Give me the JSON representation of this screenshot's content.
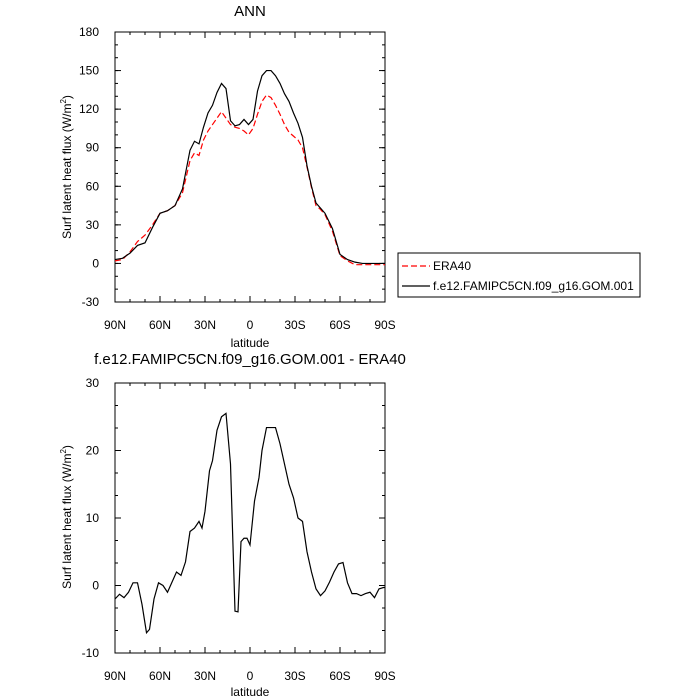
{
  "chart_data": [
    {
      "type": "line",
      "title": "ANN",
      "xlabel": "latitude",
      "ylabel": "Surf latent heat flux (W/m",
      "ylabel_sup": "2",
      "ylabel_close": ")",
      "xlim": [
        90,
        -90
      ],
      "ylim": [
        -30,
        180
      ],
      "xticks": [
        90,
        60,
        30,
        0,
        -30,
        -60,
        -90
      ],
      "xtick_labels": [
        "90N",
        "60N",
        "30N",
        "0",
        "30S",
        "60S",
        "90S"
      ],
      "yticks": [
        -30,
        0,
        30,
        60,
        90,
        120,
        150,
        180
      ],
      "ytick_labels": [
        "-30",
        "0",
        "30",
        "60",
        "90",
        "120",
        "150",
        "180"
      ],
      "grid": false,
      "legend_position": "right",
      "series": [
        {
          "name": "ERA40",
          "color": "#ff0000",
          "dash": "dashed",
          "x": [
            90,
            85,
            80,
            75,
            70,
            65,
            60,
            55,
            50,
            45,
            40,
            37,
            34,
            31,
            28,
            25,
            22,
            19,
            16,
            13,
            10,
            7,
            4,
            1,
            -2,
            -5,
            -8,
            -11,
            -14,
            -17,
            -20,
            -23,
            -26,
            -29,
            -32,
            -35,
            -38,
            -41,
            -44,
            -47,
            -50,
            -55,
            -60,
            -65,
            -70,
            -75,
            -80,
            -85,
            -90
          ],
          "y": [
            2,
            3,
            9,
            17,
            22,
            30,
            39,
            41,
            45,
            55,
            80,
            86,
            84,
            96,
            103,
            108,
            113,
            118,
            113,
            108,
            106,
            105,
            103,
            100,
            105,
            116,
            126,
            131,
            129,
            123,
            116,
            108,
            102,
            99,
            96,
            90,
            75,
            59,
            45,
            42,
            38,
            25,
            6,
            2,
            -1,
            -1,
            -1,
            -1,
            -1
          ]
        },
        {
          "name": "f.e12.FAMIPC5CN.f09_g16.GOM.001",
          "color": "#000000",
          "dash": "solid",
          "x": [
            90,
            85,
            80,
            75,
            70,
            65,
            60,
            55,
            50,
            45,
            40,
            37,
            34,
            31,
            28,
            25,
            22,
            19,
            16,
            13,
            10,
            7,
            4,
            1,
            -2,
            -5,
            -8,
            -11,
            -14,
            -17,
            -20,
            -23,
            -26,
            -29,
            -32,
            -35,
            -38,
            -41,
            -44,
            -47,
            -50,
            -55,
            -60,
            -65,
            -70,
            -75,
            -80,
            -85,
            -90
          ],
          "y": [
            3,
            4,
            8,
            14,
            16,
            28,
            39,
            41,
            45,
            58,
            88,
            95,
            93,
            106,
            117,
            123,
            133,
            140,
            136,
            111,
            107,
            108,
            112,
            108,
            112,
            134,
            146,
            150,
            150,
            146,
            140,
            132,
            126,
            117,
            109,
            98,
            76,
            60,
            47,
            43,
            39,
            27,
            7,
            3,
            1,
            0,
            0,
            0,
            0
          ]
        }
      ]
    },
    {
      "type": "line",
      "title": "f.e12.FAMIPC5CN.f09_g16.GOM.001 - ERA40",
      "xlabel": "latitude",
      "ylabel": "Surf latent heat flux (W/m",
      "ylabel_sup": "2",
      "ylabel_close": ")",
      "xlim": [
        90,
        -90
      ],
      "ylim": [
        -10,
        30
      ],
      "xticks": [
        90,
        60,
        30,
        0,
        -30,
        -60,
        -90
      ],
      "xtick_labels": [
        "90N",
        "60N",
        "30N",
        "0",
        "30S",
        "60S",
        "90S"
      ],
      "yticks": [
        -10,
        0,
        10,
        20,
        30
      ],
      "ytick_labels": [
        "-10",
        "0",
        "10",
        "20",
        "30"
      ],
      "grid": false,
      "series": [
        {
          "color": "#000000",
          "dash": "solid",
          "x": [
            90,
            87,
            84,
            81,
            78,
            75,
            72,
            69,
            67,
            64,
            61,
            58,
            55,
            52,
            49,
            46,
            43,
            40,
            37,
            34,
            32,
            30,
            27,
            25,
            22,
            19,
            16,
            13,
            10,
            8,
            6,
            4,
            2,
            0,
            -3,
            -6,
            -8,
            -11,
            -14,
            -17,
            -20,
            -23,
            -26,
            -29,
            -32,
            -35,
            -38,
            -41,
            -44,
            -47,
            -50,
            -53,
            -56,
            -59,
            -62,
            -65,
            -68,
            -71,
            -74,
            -77,
            -80,
            -83,
            -86,
            -89,
            -90
          ],
          "y": [
            -2,
            -1.3,
            -1.8,
            -1,
            0.4,
            0.4,
            -2.8,
            -7,
            -6.5,
            -2,
            0.4,
            0,
            -1,
            0.5,
            2,
            1.5,
            3.5,
            8,
            8.5,
            9.5,
            8.5,
            11,
            17,
            18.5,
            23,
            25,
            25.5,
            18,
            -3.8,
            -3.9,
            6.5,
            7,
            7,
            6,
            12.5,
            16,
            20,
            23.4,
            23.4,
            23.4,
            21,
            18,
            15,
            13,
            10,
            9.5,
            5,
            2,
            -0.5,
            -1.5,
            -0.8,
            0.5,
            2,
            3.2,
            3.4,
            0.4,
            -1.2,
            -1.2,
            -1.5,
            -1.2,
            -1,
            -1.8,
            -0.5,
            -0.3,
            -0.3
          ]
        }
      ]
    }
  ]
}
